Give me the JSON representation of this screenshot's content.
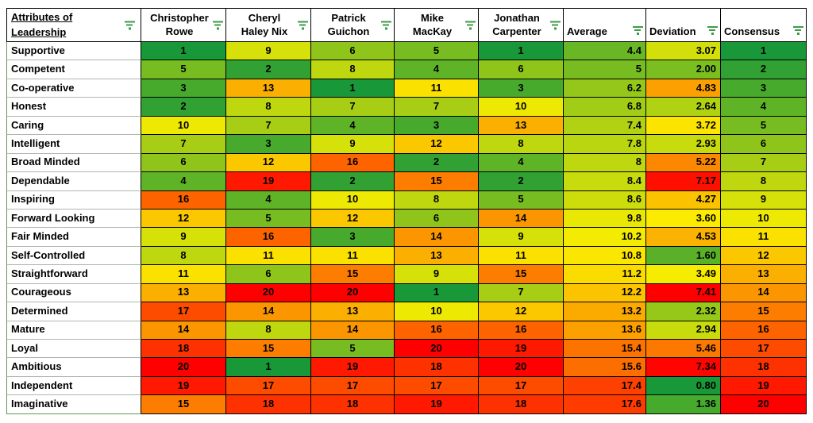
{
  "header": {
    "cells": [
      {
        "id": "attributes-of-leadership",
        "label": "Attributes of\nLeadership",
        "type": "label"
      },
      {
        "id": "christopher-rowe",
        "label": "Christopher\nRowe",
        "type": "name"
      },
      {
        "id": "cheryl-haley-nix",
        "label": "Cheryl\nHaley Nix",
        "type": "name"
      },
      {
        "id": "patrick-guichon",
        "label": "Patrick\nGuichon",
        "type": "name"
      },
      {
        "id": "mike-mackay",
        "label": "Mike\nMacKay",
        "type": "name"
      },
      {
        "id": "jonathan-carpenter",
        "label": "Jonathan\nCarpenter",
        "type": "name"
      },
      {
        "id": "average",
        "label": "Average",
        "type": "stat"
      },
      {
        "id": "deviation",
        "label": "Deviation",
        "type": "stat"
      },
      {
        "id": "consensus",
        "label": "Consensus",
        "type": "stat"
      }
    ]
  },
  "rows": [
    {
      "attribute": "Supportive",
      "ratings": [
        1,
        9,
        6,
        5,
        1
      ],
      "average": 4.4,
      "deviation": "3.07",
      "consensus": 1
    },
    {
      "attribute": "Competent",
      "ratings": [
        5,
        2,
        8,
        4,
        6
      ],
      "average": 5,
      "deviation": "2.00",
      "consensus": 2
    },
    {
      "attribute": "Co-operative",
      "ratings": [
        3,
        13,
        1,
        11,
        3
      ],
      "average": 6.2,
      "deviation": "4.83",
      "consensus": 3
    },
    {
      "attribute": "Honest",
      "ratings": [
        2,
        8,
        7,
        7,
        10
      ],
      "average": 6.8,
      "deviation": "2.64",
      "consensus": 4
    },
    {
      "attribute": "Caring",
      "ratings": [
        10,
        7,
        4,
        3,
        13
      ],
      "average": 7.4,
      "deviation": "3.72",
      "consensus": 5
    },
    {
      "attribute": "Intelligent",
      "ratings": [
        7,
        3,
        9,
        12,
        8
      ],
      "average": 7.8,
      "deviation": "2.93",
      "consensus": 6
    },
    {
      "attribute": "Broad Minded",
      "ratings": [
        6,
        12,
        16,
        2,
        4
      ],
      "average": 8,
      "deviation": "5.22",
      "consensus": 7
    },
    {
      "attribute": "Dependable",
      "ratings": [
        4,
        19,
        2,
        15,
        2
      ],
      "average": 8.4,
      "deviation": "7.17",
      "consensus": 8
    },
    {
      "attribute": "Inspiring",
      "ratings": [
        16,
        4,
        10,
        8,
        5
      ],
      "average": 8.6,
      "deviation": "4.27",
      "consensus": 9
    },
    {
      "attribute": "Forward Looking",
      "ratings": [
        12,
        5,
        12,
        6,
        14
      ],
      "average": 9.8,
      "deviation": "3.60",
      "consensus": 10
    },
    {
      "attribute": "Fair Minded",
      "ratings": [
        9,
        16,
        3,
        14,
        9
      ],
      "average": 10.2,
      "deviation": "4.53",
      "consensus": 11
    },
    {
      "attribute": "Self-Controlled",
      "ratings": [
        8,
        11,
        11,
        13,
        11
      ],
      "average": 10.8,
      "deviation": "1.60",
      "consensus": 12
    },
    {
      "attribute": "Straightforward",
      "ratings": [
        11,
        6,
        15,
        9,
        15
      ],
      "average": 11.2,
      "deviation": "3.49",
      "consensus": 13
    },
    {
      "attribute": "Courageous",
      "ratings": [
        13,
        20,
        20,
        1,
        7
      ],
      "average": 12.2,
      "deviation": "7.41",
      "consensus": 14
    },
    {
      "attribute": "Determined",
      "ratings": [
        17,
        14,
        13,
        10,
        12
      ],
      "average": 13.2,
      "deviation": "2.32",
      "consensus": 15
    },
    {
      "attribute": "Mature",
      "ratings": [
        14,
        8,
        14,
        16,
        16
      ],
      "average": 13.6,
      "deviation": "2.94",
      "consensus": 16
    },
    {
      "attribute": "Loyal",
      "ratings": [
        18,
        15,
        5,
        20,
        19
      ],
      "average": 15.4,
      "deviation": "5.46",
      "consensus": 17
    },
    {
      "attribute": "Ambitious",
      "ratings": [
        20,
        1,
        19,
        18,
        20
      ],
      "average": 15.6,
      "deviation": "7.34",
      "consensus": 18
    },
    {
      "attribute": "Independent",
      "ratings": [
        19,
        17,
        17,
        17,
        17
      ],
      "average": 17.4,
      "deviation": "0.80",
      "consensus": 19
    },
    {
      "attribute": "Imaginative",
      "ratings": [
        15,
        18,
        18,
        19,
        18
      ],
      "average": 17.6,
      "deviation": "1.36",
      "consensus": 20
    }
  ],
  "colors": {
    "scale_low": "#189838",
    "scale_mid": "#FAEE00",
    "scale_high": "#FF0000",
    "filter_icon": "#3E9B47",
    "table_border": "#5E9752"
  },
  "rank_scale": {
    "min": 1,
    "mid": 10.5,
    "max": 20
  },
  "deviation_scale": {
    "min": 0.8,
    "mid": 3.55,
    "max": 7.41
  }
}
